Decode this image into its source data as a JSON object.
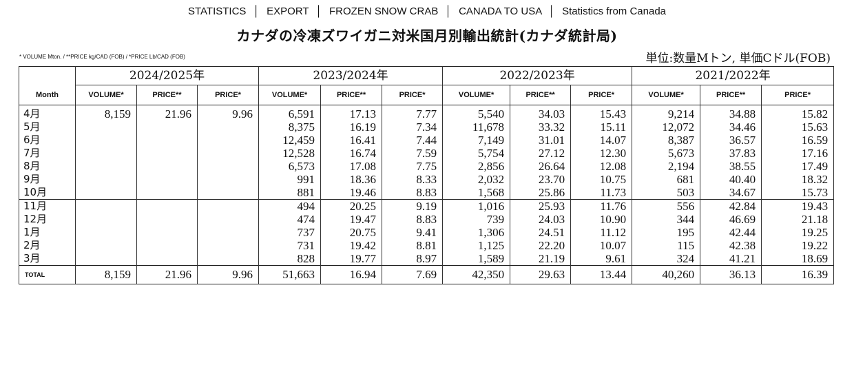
{
  "header": {
    "items": [
      "STATISTICS",
      "EXPORT",
      "FROZEN SNOW CRAB",
      "CANADA TO USA",
      "Statistics from Canada"
    ],
    "separator": "│"
  },
  "title": "カナダの冷凍ズワイガニ対米国月別輸出統計(カナダ統計局)",
  "note": "* VOLUME Mton. / **PRICE kg/CAD (FOB) / *PRICE Lb/CAD (FOB)",
  "unit": "単位:数量Mトン, 単価Cドル(FOB)",
  "table": {
    "month_header": "Month",
    "years": [
      "2024/2025年",
      "2023/2024年",
      "2022/2023年",
      "2021/2022年"
    ],
    "subheaders": [
      "VOLUME*",
      "PRICE**",
      "PRICE*"
    ],
    "rows": [
      {
        "month": "4月",
        "y1": [
          "8,159",
          "21.96",
          "9.96"
        ],
        "y2": [
          "6,591",
          "17.13",
          "7.77"
        ],
        "y3": [
          "5,540",
          "34.03",
          "15.43"
        ],
        "y4": [
          "9,214",
          "34.88",
          "15.82"
        ]
      },
      {
        "month": "5月",
        "y1": [
          "",
          "",
          ""
        ],
        "y2": [
          "8,375",
          "16.19",
          "7.34"
        ],
        "y3": [
          "11,678",
          "33.32",
          "15.11"
        ],
        "y4": [
          "12,072",
          "34.46",
          "15.63"
        ]
      },
      {
        "month": "6月",
        "y1": [
          "",
          "",
          ""
        ],
        "y2": [
          "12,459",
          "16.41",
          "7.44"
        ],
        "y3": [
          "7,149",
          "31.01",
          "14.07"
        ],
        "y4": [
          "8,387",
          "36.57",
          "16.59"
        ]
      },
      {
        "month": "7月",
        "y1": [
          "",
          "",
          ""
        ],
        "y2": [
          "12,528",
          "16.74",
          "7.59"
        ],
        "y3": [
          "5,754",
          "27.12",
          "12.30"
        ],
        "y4": [
          "5,673",
          "37.83",
          "17.16"
        ]
      },
      {
        "month": "8月",
        "y1": [
          "",
          "",
          ""
        ],
        "y2": [
          "6,573",
          "17.08",
          "7.75"
        ],
        "y3": [
          "2,856",
          "26.64",
          "12.08"
        ],
        "y4": [
          "2,194",
          "38.55",
          "17.49"
        ]
      },
      {
        "month": "9月",
        "y1": [
          "",
          "",
          ""
        ],
        "y2": [
          "991",
          "18.36",
          "8.33"
        ],
        "y3": [
          "2,032",
          "23.70",
          "10.75"
        ],
        "y4": [
          "681",
          "40.40",
          "18.32"
        ]
      },
      {
        "month": "10月",
        "y1": [
          "",
          "",
          ""
        ],
        "y2": [
          "881",
          "19.46",
          "8.83"
        ],
        "y3": [
          "1,568",
          "25.86",
          "11.73"
        ],
        "y4": [
          "503",
          "34.67",
          "15.73"
        ]
      },
      {
        "month": "11月",
        "y1": [
          "",
          "",
          ""
        ],
        "y2": [
          "494",
          "20.25",
          "9.19"
        ],
        "y3": [
          "1,016",
          "25.93",
          "11.76"
        ],
        "y4": [
          "556",
          "42.84",
          "19.43"
        ]
      },
      {
        "month": "12月",
        "y1": [
          "",
          "",
          ""
        ],
        "y2": [
          "474",
          "19.47",
          "8.83"
        ],
        "y3": [
          "739",
          "24.03",
          "10.90"
        ],
        "y4": [
          "344",
          "46.69",
          "21.18"
        ]
      },
      {
        "month": "1月",
        "y1": [
          "",
          "",
          ""
        ],
        "y2": [
          "737",
          "20.75",
          "9.41"
        ],
        "y3": [
          "1,306",
          "24.51",
          "11.12"
        ],
        "y4": [
          "195",
          "42.44",
          "19.25"
        ]
      },
      {
        "month": "2月",
        "y1": [
          "",
          "",
          ""
        ],
        "y2": [
          "731",
          "19.42",
          "8.81"
        ],
        "y3": [
          "1,125",
          "22.20",
          "10.07"
        ],
        "y4": [
          "115",
          "42.38",
          "19.22"
        ]
      },
      {
        "month": "3月",
        "y1": [
          "",
          "",
          ""
        ],
        "y2": [
          "828",
          "19.77",
          "8.97"
        ],
        "y3": [
          "1,589",
          "21.19",
          "9.61"
        ],
        "y4": [
          "324",
          "41.21",
          "18.69"
        ]
      }
    ],
    "total": {
      "label": "TOTAL",
      "y1": [
        "8,159",
        "21.96",
        "9.96"
      ],
      "y2": [
        "51,663",
        "16.94",
        "7.69"
      ],
      "y3": [
        "42,350",
        "29.63",
        "13.44"
      ],
      "y4": [
        "40,260",
        "36.13",
        "16.39"
      ]
    }
  }
}
